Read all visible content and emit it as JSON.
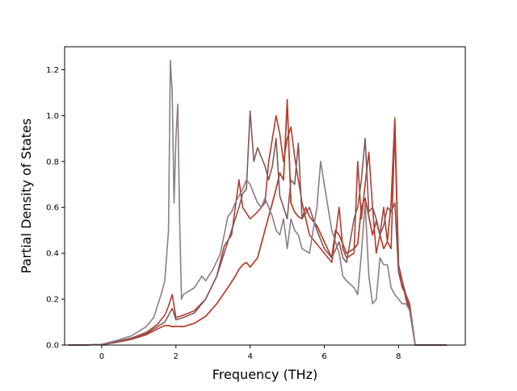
{
  "chart_data": {
    "type": "line",
    "title": "",
    "xlabel": "Frequency (THz)",
    "ylabel": "Partial Density of States",
    "xlim": [
      -1.0,
      9.8
    ],
    "ylim": [
      0.0,
      1.3
    ],
    "xticks": [
      0,
      2,
      4,
      6,
      8
    ],
    "yticks": [
      0.0,
      0.2,
      0.4,
      0.6,
      0.8,
      1.0,
      1.2
    ],
    "xtick_labels": [
      "0",
      "2",
      "4",
      "6",
      "8"
    ],
    "ytick_labels": [
      "0.0",
      "0.2",
      "0.4",
      "0.6",
      "0.8",
      "1.0",
      "1.2"
    ],
    "grid": false,
    "legend": "none",
    "series": [
      {
        "color": "#2ca02c",
        "x": [
          -0.9,
          -0.5,
          0,
          0.4,
          0.8,
          1.2,
          1.5,
          1.7,
          1.8,
          1.9,
          2.0,
          2.2,
          2.5,
          2.8,
          3.1,
          3.4,
          3.6,
          3.7,
          3.8,
          3.9,
          4.0,
          4.2,
          4.4,
          4.6,
          4.7,
          4.8,
          4.9,
          5.0,
          5.1,
          5.2,
          5.3,
          5.4,
          5.5,
          5.6,
          5.8,
          6.0,
          6.2,
          6.3,
          6.4,
          6.5,
          6.6,
          6.8,
          6.9,
          7.0,
          7.1,
          7.2,
          7.3,
          7.4,
          7.5,
          7.6,
          7.7,
          7.8,
          7.9,
          8.0,
          8.1,
          8.2,
          8.3,
          8.4,
          8.45,
          8.6,
          9.3
        ],
        "values": [
          0,
          0,
          0.002,
          0.012,
          0.025,
          0.045,
          0.07,
          0.085,
          0.085,
          0.08,
          0.082,
          0.08,
          0.095,
          0.125,
          0.18,
          0.25,
          0.3,
          0.33,
          0.35,
          0.36,
          0.34,
          0.38,
          0.5,
          0.62,
          0.68,
          0.75,
          0.72,
          1.06,
          0.62,
          0.58,
          0.56,
          0.55,
          0.6,
          0.56,
          0.52,
          0.45,
          0.38,
          0.5,
          0.48,
          0.44,
          0.4,
          0.42,
          0.44,
          0.6,
          0.64,
          0.56,
          0.48,
          0.54,
          0.48,
          0.42,
          0.45,
          0.62,
          0.99,
          0.35,
          0.28,
          0.2,
          0.15,
          0.05,
          0.0,
          0.0,
          0.0
        ]
      },
      {
        "color": "#c0392b",
        "x": [
          -0.9,
          -0.5,
          0,
          0.4,
          0.8,
          1.2,
          1.5,
          1.7,
          1.8,
          1.9,
          2.0,
          2.2,
          2.5,
          2.8,
          3.1,
          3.4,
          3.6,
          3.7,
          3.8,
          3.9,
          4.0,
          4.2,
          4.4,
          4.6,
          4.7,
          4.8,
          4.9,
          5.0,
          5.1,
          5.2,
          5.3,
          5.4,
          5.5,
          5.6,
          5.8,
          6.0,
          6.2,
          6.3,
          6.4,
          6.5,
          6.6,
          6.8,
          6.9,
          7.0,
          7.1,
          7.2,
          7.3,
          7.4,
          7.5,
          7.6,
          7.7,
          7.8,
          7.9,
          8.0,
          8.1,
          8.2,
          8.3,
          8.4,
          8.45,
          8.6,
          9.3
        ],
        "values": [
          0,
          0,
          0.002,
          0.012,
          0.025,
          0.045,
          0.07,
          0.085,
          0.085,
          0.08,
          0.082,
          0.08,
          0.095,
          0.125,
          0.18,
          0.25,
          0.3,
          0.33,
          0.35,
          0.36,
          0.34,
          0.38,
          0.5,
          0.62,
          0.68,
          0.75,
          0.72,
          1.07,
          0.62,
          0.58,
          0.56,
          0.55,
          0.6,
          0.56,
          0.52,
          0.45,
          0.38,
          0.5,
          0.48,
          0.44,
          0.4,
          0.42,
          0.44,
          0.6,
          0.64,
          0.56,
          0.48,
          0.54,
          0.48,
          0.42,
          0.45,
          0.62,
          0.98,
          0.35,
          0.28,
          0.2,
          0.15,
          0.05,
          0.0,
          0.0,
          0.0
        ]
      },
      {
        "color": "#b83a2e",
        "x": [
          -0.9,
          -0.5,
          0,
          0.4,
          0.8,
          1.2,
          1.5,
          1.7,
          1.8,
          1.9,
          2.0,
          2.2,
          2.5,
          2.8,
          3.1,
          3.3,
          3.5,
          3.6,
          3.7,
          3.8,
          4.0,
          4.2,
          4.4,
          4.5,
          4.6,
          4.7,
          4.8,
          4.9,
          5.0,
          5.1,
          5.2,
          5.4,
          5.6,
          5.8,
          6.0,
          6.2,
          6.4,
          6.5,
          6.6,
          6.8,
          6.9,
          7.0,
          7.1,
          7.2,
          7.3,
          7.4,
          7.5,
          7.6,
          7.7,
          7.8,
          7.9,
          8.0,
          8.1,
          8.2,
          8.3,
          8.4,
          8.45,
          8.6,
          9.3
        ],
        "values": [
          0,
          0,
          0.003,
          0.015,
          0.03,
          0.055,
          0.09,
          0.13,
          0.17,
          0.22,
          0.12,
          0.13,
          0.15,
          0.2,
          0.3,
          0.43,
          0.48,
          0.6,
          0.72,
          0.6,
          0.55,
          0.58,
          0.62,
          0.8,
          0.9,
          1.0,
          0.92,
          0.8,
          0.9,
          0.95,
          0.82,
          0.62,
          0.48,
          0.44,
          0.4,
          0.36,
          0.6,
          0.42,
          0.38,
          0.4,
          0.8,
          0.55,
          0.7,
          0.84,
          0.6,
          0.4,
          0.48,
          0.6,
          0.45,
          0.42,
          0.95,
          0.32,
          0.25,
          0.22,
          0.18,
          0.06,
          0.0,
          0.0,
          0.0
        ]
      },
      {
        "color": "#7f5a58",
        "x": [
          -0.9,
          -0.5,
          0,
          0.4,
          0.8,
          1.2,
          1.5,
          1.7,
          1.8,
          1.9,
          2.0,
          2.2,
          2.5,
          2.8,
          3.1,
          3.4,
          3.6,
          3.7,
          3.8,
          3.9,
          4.0,
          4.1,
          4.2,
          4.4,
          4.5,
          4.6,
          4.7,
          4.8,
          4.9,
          5.0,
          5.1,
          5.2,
          5.3,
          5.4,
          5.6,
          5.8,
          6.0,
          6.2,
          6.4,
          6.5,
          6.6,
          6.8,
          6.9,
          7.0,
          7.1,
          7.2,
          7.3,
          7.4,
          7.5,
          7.6,
          7.7,
          7.8,
          7.9,
          8.0,
          8.1,
          8.2,
          8.3,
          8.4,
          8.45,
          8.6,
          9.3
        ],
        "values": [
          0,
          0,
          0.003,
          0.015,
          0.03,
          0.05,
          0.08,
          0.1,
          0.13,
          0.16,
          0.11,
          0.12,
          0.14,
          0.2,
          0.3,
          0.45,
          0.55,
          0.6,
          0.66,
          0.68,
          1.02,
          0.8,
          0.86,
          0.78,
          0.72,
          0.78,
          0.9,
          0.65,
          0.6,
          0.55,
          0.72,
          0.7,
          0.88,
          0.55,
          0.6,
          0.5,
          0.42,
          0.38,
          0.45,
          0.38,
          0.36,
          0.55,
          0.6,
          0.72,
          0.9,
          0.58,
          0.6,
          0.55,
          0.48,
          0.52,
          0.6,
          0.58,
          0.62,
          0.32,
          0.28,
          0.22,
          0.16,
          0.06,
          0.0,
          0.0,
          0.0
        ]
      },
      {
        "color": "#8a7d88",
        "x": [
          -0.9,
          -0.5,
          0,
          0.4,
          0.8,
          1.2,
          1.4,
          1.5,
          1.6,
          1.7,
          1.8,
          1.85,
          1.9,
          1.95,
          2.0,
          2.05,
          2.1,
          2.15,
          2.2,
          2.3,
          2.5,
          2.7,
          2.8,
          3.0,
          3.2,
          3.4,
          3.5,
          3.6,
          3.7,
          3.8,
          3.9,
          4.0,
          4.2,
          4.3,
          4.4,
          4.5,
          4.6,
          4.7,
          4.8,
          4.9,
          5.0,
          5.1,
          5.2,
          5.3,
          5.4,
          5.6,
          5.8,
          5.9,
          6.0,
          6.2,
          6.4,
          6.5,
          6.6,
          6.8,
          6.9,
          7.0,
          7.1,
          7.2,
          7.3,
          7.4,
          7.5,
          7.6,
          7.7,
          7.8,
          7.9,
          8.0,
          8.1,
          8.2,
          8.3,
          8.4,
          8.45,
          8.6,
          9.3
        ],
        "values": [
          0,
          0,
          0.003,
          0.02,
          0.04,
          0.08,
          0.12,
          0.17,
          0.22,
          0.28,
          0.5,
          1.24,
          1.1,
          0.62,
          0.9,
          1.05,
          0.55,
          0.2,
          0.22,
          0.23,
          0.25,
          0.3,
          0.28,
          0.33,
          0.4,
          0.56,
          0.58,
          0.62,
          0.65,
          0.68,
          0.72,
          0.7,
          0.62,
          0.6,
          0.64,
          0.6,
          0.56,
          0.5,
          0.48,
          0.55,
          0.42,
          0.55,
          0.5,
          0.48,
          0.42,
          0.4,
          0.6,
          0.8,
          0.7,
          0.5,
          0.4,
          0.3,
          0.28,
          0.25,
          0.22,
          0.4,
          0.62,
          0.3,
          0.18,
          0.2,
          0.38,
          0.35,
          0.35,
          0.25,
          0.22,
          0.2,
          0.18,
          0.18,
          0.15,
          0.05,
          0.0,
          0.0,
          0.0
        ]
      }
    ]
  }
}
